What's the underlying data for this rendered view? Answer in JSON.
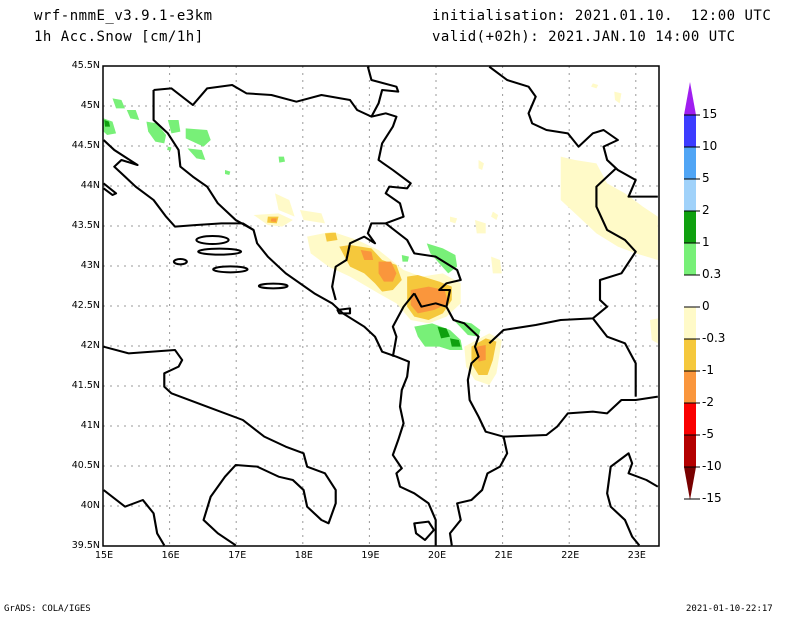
{
  "header": {
    "model": "wrf-nmmE_v3.9.1-e3km",
    "variable": "1h Acc.Snow [cm/1h]",
    "init": "initialisation: 2021.01.10.  12:00 UTC",
    "valid": "valid(+02h): 2021.JAN.10 14:00 UTC"
  },
  "axes": {
    "lon_labels": [
      "15E",
      "16E",
      "17E",
      "18E",
      "19E",
      "20E",
      "21E",
      "22E",
      "23E"
    ],
    "lat_labels": [
      "45.5N",
      "45N",
      "44.5N",
      "44N",
      "43.5N",
      "43N",
      "42.5N",
      "42N",
      "41.5N",
      "41N",
      "40.5N",
      "40N",
      "39.5N"
    ]
  },
  "colorbar": {
    "labels": [
      "15",
      "10",
      "5",
      "2",
      "1",
      "0.3",
      "0",
      "-0.3",
      "-1",
      "-2",
      "-5",
      "-10",
      "-15"
    ],
    "colors": [
      "#a01ef0",
      "#3c3cff",
      "#50a5f5",
      "#a0d2fa",
      "#0fa00f",
      "#78f078",
      "#ffffff",
      "#fffac8",
      "#f5c83c",
      "#fa963c",
      "#fa0000",
      "#b40000",
      "#780000"
    ]
  },
  "footer": {
    "left": "GrADS: COLA/IGES",
    "right": "2021-01-10-22:17"
  }
}
